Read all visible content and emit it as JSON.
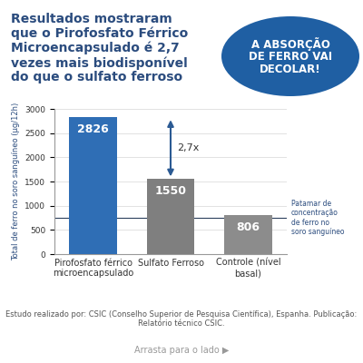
{
  "chart_data": {
    "type": "bar",
    "title": "Resultados mostraram\nque o Pirofosfato Férrico\nMicroencapsulado é 2,7\nvezes mais biodisponível\ndo que o sulfato ferroso",
    "callout": "A ABSORÇÃO\nDE FERRO VAI\nDECOLAR!",
    "y_label": "Total de ferro no soro sanguíneo (µg/12h)",
    "categories": [
      "Pirofosfato férrico microencapsulado",
      "Sulfato Ferroso",
      "Controle (nível basal)"
    ],
    "values": [
      2826,
      1550,
      806
    ],
    "colors": [
      "#2f6eb5",
      "#7f7f7f",
      "#8c8c8c"
    ],
    "data_labels": true,
    "ylim": [
      0,
      3000
    ],
    "yticks": [
      0,
      500,
      1000,
      1500,
      2000,
      2500,
      3000
    ],
    "grid": true,
    "comparison": {
      "text": "2,7x",
      "from": 2826,
      "to": 1550
    },
    "reference_line": {
      "value": 750,
      "label": "Patamar de concentração de ferro no soro sanguíneo"
    },
    "source": "Estudo realizado por: CSIC (Conselho Superior de Pesquisa Científica), Espanha. Publicação: Relatório técnico CSIC.",
    "footer": "Arrasta para o lado ▶"
  }
}
